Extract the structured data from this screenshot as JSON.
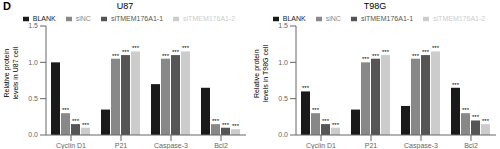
{
  "title": "D",
  "chart_data": [
    {
      "type": "bar",
      "title": "U87",
      "ylabel": "Relative protein\nlevels in U87 cell",
      "categories": [
        "Cyclin D1",
        "P21",
        "Caspase-3",
        "Bcl2"
      ],
      "series": [
        {
          "name": "BLANK",
          "color": "#1a1a1a",
          "values": [
            1.0,
            0.35,
            0.7,
            0.65
          ]
        },
        {
          "name": "siNC",
          "color": "#888888",
          "values": [
            0.3,
            1.05,
            1.05,
            0.15
          ]
        },
        {
          "name": "siTMEM176A1-1",
          "color": "#555555",
          "values": [
            0.15,
            1.1,
            1.1,
            0.1
          ]
        },
        {
          "name": "siTMEM176A1-2",
          "color": "#cccccc",
          "values": [
            0.1,
            1.15,
            1.15,
            0.08
          ]
        }
      ],
      "ylim": [
        0,
        1.5
      ],
      "yticks": [
        {
          "value": 0,
          "label": "0.0"
        },
        0.5,
        {
          "value": 1,
          "label": "1.0"
        },
        1.5
      ],
      "legend": "top",
      "annotations": [
        {
          "category": "Cyclin D1",
          "series": "siNC",
          "text": "***"
        },
        {
          "category": "Cyclin D1",
          "series": "siTMEM176A1-1",
          "text": "***"
        },
        {
          "category": "Cyclin D1",
          "series": "siTMEM176A1-2",
          "text": "***"
        },
        {
          "category": "P21",
          "series": "siNC",
          "text": "***"
        },
        {
          "category": "P21",
          "series": "siTMEM176A1-1",
          "text": "***"
        },
        {
          "category": "P21",
          "series": "siTMEM176A1-2",
          "text": "***"
        },
        {
          "category": "Caspase-3",
          "series": "siNC",
          "text": "***"
        },
        {
          "category": "Caspase-3",
          "series": "siTMEM176A1-1",
          "text": "***"
        },
        {
          "category": "Caspase-3",
          "series": "siTMEM176A1-2",
          "text": "***"
        },
        {
          "category": "Bcl2",
          "series": "siNC",
          "text": "***"
        },
        {
          "category": "Bcl2",
          "series": "siTMEM176A1-1",
          "text": "***"
        },
        {
          "category": "Bcl2",
          "series": "siTMEM176A1-2",
          "text": "***"
        }
      ]
    },
    {
      "type": "bar",
      "title": "T98G",
      "ylabel": "Relative protein\nlevels in T98G cell",
      "categories": [
        "Cyclin D1",
        "P21",
        "Caspase-3",
        "Bcl2"
      ],
      "series": [
        {
          "name": "BLANK",
          "color": "#1a1a1a",
          "values": [
            0.6,
            0.35,
            0.4,
            0.65
          ]
        },
        {
          "name": "siNC",
          "color": "#888888",
          "values": [
            0.3,
            1.0,
            1.05,
            0.3
          ]
        },
        {
          "name": "siTMEM176A1-1",
          "color": "#555555",
          "values": [
            0.15,
            1.05,
            1.1,
            0.2
          ]
        },
        {
          "name": "siTMEM176A1-2",
          "color": "#cccccc",
          "values": [
            0.1,
            1.1,
            1.15,
            0.15
          ]
        }
      ],
      "ylim": [
        0,
        1.5
      ],
      "yticks": [
        {
          "value": 0,
          "label": "0.0"
        },
        0.5,
        {
          "value": 1,
          "label": "1.0"
        },
        1.5
      ],
      "legend": "top",
      "annotations": [
        {
          "category": "Cyclin D1",
          "series": "BLANK",
          "text": "***"
        },
        {
          "category": "Cyclin D1",
          "series": "siNC",
          "text": "***"
        },
        {
          "category": "Cyclin D1",
          "series": "siTMEM176A1-1",
          "text": "***"
        },
        {
          "category": "Cyclin D1",
          "series": "siTMEM176A1-2",
          "text": "***"
        },
        {
          "category": "P21",
          "series": "siNC",
          "text": "***"
        },
        {
          "category": "P21",
          "series": "siTMEM176A1-1",
          "text": "***"
        },
        {
          "category": "P21",
          "series": "siTMEM176A1-2",
          "text": "***"
        },
        {
          "category": "Caspase-3",
          "series": "siNC",
          "text": "***"
        },
        {
          "category": "Caspase-3",
          "series": "siTMEM176A1-1",
          "text": "***"
        },
        {
          "category": "Caspase-3",
          "series": "siTMEM176A1-2",
          "text": "***"
        },
        {
          "category": "Bcl2",
          "series": "BLANK",
          "text": "***"
        },
        {
          "category": "Bcl2",
          "series": "siNC",
          "text": "***"
        },
        {
          "category": "Bcl2",
          "series": "siTMEM176A1-1",
          "text": "***"
        },
        {
          "category": "Bcl2",
          "series": "siTMEM176A1-2",
          "text": "***"
        }
      ]
    }
  ]
}
